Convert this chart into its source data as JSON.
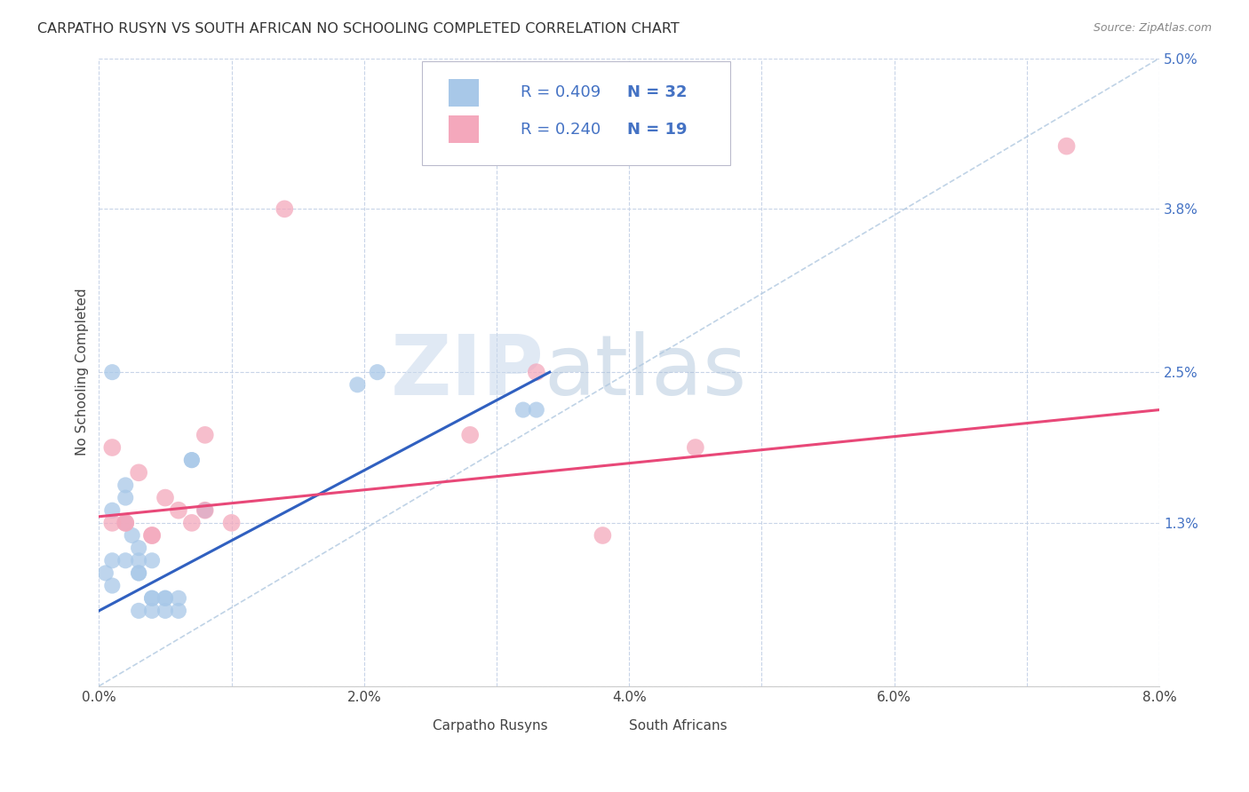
{
  "title": "CARPATHO RUSYN VS SOUTH AFRICAN NO SCHOOLING COMPLETED CORRELATION CHART",
  "source": "Source: ZipAtlas.com",
  "ylabel": "No Schooling Completed",
  "xlim": [
    0.0,
    0.08
  ],
  "ylim": [
    0.0,
    0.05
  ],
  "xticks": [
    0.0,
    0.01,
    0.02,
    0.03,
    0.04,
    0.05,
    0.06,
    0.07,
    0.08
  ],
  "xticklabels": [
    "0.0%",
    "",
    "2.0%",
    "",
    "4.0%",
    "",
    "6.0%",
    "",
    "8.0%"
  ],
  "yticks": [
    0.0,
    0.013,
    0.025,
    0.038,
    0.05
  ],
  "yticklabels": [
    "",
    "1.3%",
    "2.5%",
    "3.8%",
    "5.0%"
  ],
  "blue_color": "#a8c8e8",
  "pink_color": "#f4a8bc",
  "blue_line_color": "#3060c0",
  "pink_line_color": "#e84878",
  "dashed_line_color": "#b0c8e0",
  "watermark_zip": "ZIP",
  "watermark_atlas": "atlas",
  "legend_label_blue": "Carpatho Rusyns",
  "legend_label_pink": "South Africans",
  "blue_x": [
    0.0005,
    0.001,
    0.001,
    0.001,
    0.001,
    0.002,
    0.002,
    0.002,
    0.002,
    0.0025,
    0.003,
    0.003,
    0.003,
    0.003,
    0.003,
    0.004,
    0.004,
    0.004,
    0.004,
    0.005,
    0.005,
    0.005,
    0.006,
    0.006,
    0.007,
    0.007,
    0.008,
    0.008,
    0.0195,
    0.021,
    0.032,
    0.033
  ],
  "blue_y": [
    0.009,
    0.008,
    0.01,
    0.014,
    0.025,
    0.01,
    0.013,
    0.015,
    0.016,
    0.012,
    0.009,
    0.009,
    0.01,
    0.011,
    0.006,
    0.006,
    0.007,
    0.007,
    0.01,
    0.006,
    0.007,
    0.007,
    0.006,
    0.007,
    0.018,
    0.018,
    0.014,
    0.014,
    0.024,
    0.025,
    0.022,
    0.022
  ],
  "pink_x": [
    0.001,
    0.001,
    0.002,
    0.002,
    0.003,
    0.004,
    0.004,
    0.005,
    0.006,
    0.007,
    0.008,
    0.008,
    0.01,
    0.014,
    0.028,
    0.033,
    0.038,
    0.045,
    0.073
  ],
  "pink_y": [
    0.013,
    0.019,
    0.013,
    0.013,
    0.017,
    0.012,
    0.012,
    0.015,
    0.014,
    0.013,
    0.014,
    0.02,
    0.013,
    0.038,
    0.02,
    0.025,
    0.012,
    0.019,
    0.043
  ],
  "blue_marker_size": 170,
  "pink_marker_size": 200,
  "blue_line_x0": 0.0,
  "blue_line_y0": 0.006,
  "blue_line_x1": 0.034,
  "blue_line_y1": 0.025,
  "pink_line_x0": 0.0,
  "pink_line_y0": 0.0135,
  "pink_line_x1": 0.08,
  "pink_line_y1": 0.022,
  "background_color": "#ffffff",
  "grid_color": "#c8d4e8"
}
